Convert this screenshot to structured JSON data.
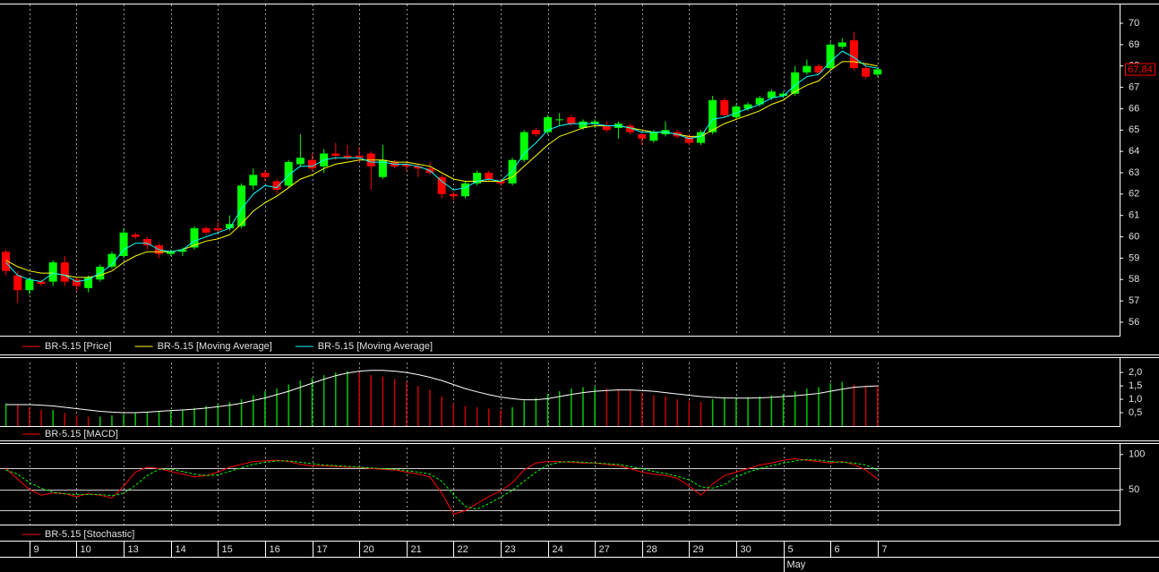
{
  "x_axis": {
    "xlim": [
      -0.5,
      94.55
    ],
    "xticks": [
      {
        "value": 2,
        "label": "9"
      },
      {
        "value": 6,
        "label": "10"
      },
      {
        "value": 10,
        "label": "13"
      },
      {
        "value": 14,
        "label": "14"
      },
      {
        "value": 18,
        "label": "15"
      },
      {
        "value": 22,
        "label": "16"
      },
      {
        "value": 26,
        "label": "17"
      },
      {
        "value": 30,
        "label": "20"
      },
      {
        "value": 34,
        "label": "21"
      },
      {
        "value": 38,
        "label": "22"
      },
      {
        "value": 42,
        "label": "23"
      },
      {
        "value": 46,
        "label": "24"
      },
      {
        "value": 50,
        "label": "27"
      },
      {
        "value": 54,
        "label": "28"
      },
      {
        "value": 58,
        "label": "29"
      },
      {
        "value": 62,
        "label": "30"
      },
      {
        "value": 66,
        "label": "5"
      },
      {
        "value": 70,
        "label": "6"
      },
      {
        "value": 74,
        "label": "7"
      }
    ],
    "months": [
      {
        "value": 66,
        "label": "May"
      }
    ]
  },
  "chart_data": [
    {
      "type": "candlestick",
      "ylim": [
        55.37,
        70.88
      ],
      "yticks": [
        56,
        57,
        58,
        59,
        60,
        61,
        62,
        63,
        64,
        65,
        66,
        67,
        68,
        69,
        70
      ],
      "last_price": {
        "value": 67.84,
        "label": "67,84"
      },
      "last_price_color": "#ff0000",
      "series": [
        {
          "name": "BR-5.15 [Price]",
          "color": "#ff0000",
          "up_color": "#00ff00",
          "down_color": "#ff0000",
          "open": [
            59.3,
            58.2,
            57.5,
            57.9,
            57.9,
            58.8,
            58.0,
            57.6,
            58.0,
            58.6,
            59.1,
            60.1,
            59.9,
            59.6,
            59.2,
            59.3,
            59.5,
            60.4,
            60.4,
            60.4,
            60.5,
            62.4,
            63.0,
            62.6,
            62.4,
            63.4,
            63.6,
            63.3,
            63.9,
            63.8,
            63.8,
            63.9,
            62.8,
            63.5,
            63.4,
            63.3,
            63.2,
            62.8,
            62.0,
            61.9,
            62.5,
            63.0,
            62.6,
            62.5,
            63.6,
            65.0,
            64.9,
            65.5,
            65.6,
            65.1,
            65.3,
            65.2,
            65.1,
            65.2,
            64.8,
            64.5,
            64.8,
            64.9,
            64.7,
            64.4,
            64.9,
            66.4,
            65.6,
            66.0,
            66.2,
            66.5,
            66.6,
            66.7,
            67.7,
            68.0,
            67.9,
            68.9,
            69.2,
            67.9,
            67.6
          ],
          "high": [
            59.4,
            58.4,
            58.1,
            58.0,
            58.9,
            59.1,
            58.1,
            58.2,
            58.7,
            59.3,
            60.4,
            60.2,
            60.0,
            59.7,
            59.4,
            59.5,
            60.5,
            60.5,
            60.7,
            61.0,
            62.5,
            63.2,
            63.1,
            62.7,
            63.6,
            64.8,
            63.9,
            64.1,
            64.4,
            64.3,
            64.2,
            64.0,
            64.3,
            63.6,
            63.5,
            63.4,
            63.5,
            62.9,
            62.1,
            62.6,
            63.1,
            63.1,
            62.7,
            63.7,
            65.0,
            65.1,
            65.7,
            65.8,
            65.7,
            65.5,
            65.5,
            65.4,
            65.4,
            65.3,
            64.9,
            65.0,
            65.4,
            65.0,
            64.8,
            65.0,
            66.6,
            66.5,
            66.2,
            66.3,
            66.6,
            66.9,
            66.8,
            68.0,
            68.3,
            68.1,
            69.1,
            69.3,
            69.6,
            68.1,
            67.9
          ],
          "low": [
            58.2,
            56.9,
            57.3,
            57.7,
            57.7,
            57.7,
            57.5,
            57.4,
            57.9,
            58.5,
            59.0,
            59.9,
            59.4,
            59.0,
            59.1,
            59.1,
            59.4,
            60.1,
            60.2,
            60.3,
            60.4,
            62.2,
            62.6,
            62.0,
            62.3,
            63.3,
            63.1,
            63.0,
            63.6,
            63.6,
            63.5,
            62.2,
            62.7,
            63.2,
            63.1,
            62.8,
            62.9,
            61.8,
            61.7,
            61.8,
            62.4,
            62.6,
            62.4,
            62.4,
            63.5,
            64.7,
            64.8,
            65.2,
            65.2,
            65.0,
            65.1,
            64.9,
            64.6,
            64.8,
            64.3,
            64.4,
            64.7,
            64.6,
            64.3,
            64.3,
            64.8,
            65.6,
            65.5,
            65.9,
            66.1,
            66.4,
            66.5,
            66.6,
            67.6,
            67.6,
            67.8,
            68.8,
            67.8,
            67.4,
            67.5
          ],
          "close": [
            58.4,
            57.5,
            58.0,
            57.8,
            58.8,
            57.9,
            57.7,
            58.1,
            58.6,
            59.2,
            60.2,
            60.0,
            59.6,
            59.2,
            59.3,
            59.4,
            60.4,
            60.2,
            60.3,
            60.6,
            62.4,
            62.9,
            62.8,
            62.2,
            63.5,
            63.7,
            63.2,
            63.9,
            63.8,
            63.7,
            63.7,
            63.3,
            63.6,
            63.3,
            63.3,
            63.2,
            63.0,
            62.0,
            61.9,
            62.5,
            63.0,
            62.7,
            62.5,
            63.6,
            64.9,
            64.8,
            65.6,
            65.5,
            65.3,
            65.4,
            65.4,
            65.0,
            65.3,
            64.9,
            64.6,
            64.9,
            65.0,
            64.7,
            64.4,
            64.9,
            66.4,
            65.7,
            66.1,
            66.2,
            66.5,
            66.8,
            66.7,
            67.7,
            68.0,
            67.7,
            69.0,
            69.1,
            67.9,
            67.5,
            67.84
          ]
        },
        {
          "name": "BR-5.15 [Moving Average]",
          "color": "#ffff00",
          "values": [
            58.9,
            58.6,
            58.4,
            58.3,
            58.3,
            58.2,
            58.1,
            58.1,
            58.2,
            58.4,
            58.8,
            59.1,
            59.3,
            59.3,
            59.3,
            59.4,
            59.6,
            59.8,
            59.9,
            60.1,
            60.6,
            61.2,
            61.6,
            61.9,
            62.3,
            62.7,
            62.9,
            63.2,
            63.4,
            63.5,
            63.6,
            63.6,
            63.6,
            63.5,
            63.5,
            63.4,
            63.3,
            63.0,
            62.7,
            62.6,
            62.6,
            62.6,
            62.6,
            62.8,
            63.3,
            63.8,
            64.3,
            64.7,
            64.9,
            65.1,
            65.2,
            65.2,
            65.2,
            65.1,
            65.0,
            64.9,
            64.9,
            64.8,
            64.7,
            64.7,
            65.0,
            65.3,
            65.5,
            65.7,
            65.9,
            66.2,
            66.4,
            66.8,
            67.1,
            67.3,
            67.8,
            68.2,
            68.2,
            68.1,
            68.0
          ]
        },
        {
          "name": "BR-5.15 [Moving Average]",
          "color": "#00ffff",
          "values": [
            58.8,
            58.2,
            58.0,
            57.9,
            58.3,
            58.2,
            57.9,
            58.0,
            58.3,
            58.7,
            59.4,
            59.7,
            59.7,
            59.4,
            59.3,
            59.4,
            59.8,
            60.0,
            60.2,
            60.4,
            61.3,
            62.0,
            62.4,
            62.3,
            62.9,
            63.3,
            63.3,
            63.6,
            63.7,
            63.7,
            63.7,
            63.5,
            63.5,
            63.4,
            63.4,
            63.3,
            63.1,
            62.6,
            62.2,
            62.3,
            62.6,
            62.7,
            62.6,
            63.1,
            63.9,
            64.4,
            65.0,
            65.2,
            65.3,
            65.3,
            65.3,
            65.2,
            65.2,
            65.1,
            64.9,
            64.9,
            64.9,
            64.8,
            64.6,
            64.7,
            65.5,
            65.6,
            65.8,
            66.0,
            66.2,
            66.5,
            66.6,
            67.1,
            67.5,
            67.6,
            68.2,
            68.7,
            68.4,
            68.0,
            67.9
          ]
        }
      ]
    },
    {
      "type": "macd",
      "ylim": [
        0,
        2.37
      ],
      "yticks": [
        {
          "value": 0.5,
          "label": "0,5"
        },
        {
          "value": 1.0,
          "label": "1,0"
        },
        {
          "value": 1.5,
          "label": "1,5"
        },
        {
          "value": 2.0,
          "label": "2,0"
        }
      ],
      "series": [
        {
          "name": "BR-5.15 [MACD]",
          "color": "#ff0000",
          "style": "histogram",
          "up_color": "#00c800",
          "down_color": "#c80000",
          "values": [
            0.85,
            0.8,
            0.7,
            0.6,
            0.6,
            0.5,
            0.4,
            0.35,
            0.35,
            0.4,
            0.45,
            0.5,
            0.52,
            0.55,
            0.58,
            0.62,
            0.68,
            0.75,
            0.82,
            0.9,
            1.0,
            1.15,
            1.3,
            1.4,
            1.55,
            1.7,
            1.8,
            1.9,
            2.0,
            2.05,
            2.0,
            1.9,
            1.85,
            1.75,
            1.65,
            1.5,
            1.35,
            1.1,
            0.85,
            0.75,
            0.7,
            0.65,
            0.6,
            0.7,
            0.95,
            1.05,
            1.2,
            1.3,
            1.4,
            1.45,
            1.46,
            1.4,
            1.38,
            1.35,
            1.25,
            1.15,
            1.1,
            1.0,
            0.95,
            0.9,
            1.0,
            1.05,
            1.06,
            1.08,
            1.1,
            1.15,
            1.2,
            1.3,
            1.4,
            1.45,
            1.6,
            1.65,
            1.55,
            1.5,
            1.48
          ]
        },
        {
          "color": "#ffffff",
          "values": [
            0.8,
            0.8,
            0.8,
            0.78,
            0.75,
            0.7,
            0.65,
            0.6,
            0.55,
            0.52,
            0.5,
            0.5,
            0.52,
            0.55,
            0.58,
            0.6,
            0.63,
            0.67,
            0.72,
            0.78,
            0.85,
            0.95,
            1.05,
            1.17,
            1.3,
            1.45,
            1.6,
            1.75,
            1.88,
            1.98,
            2.05,
            2.08,
            2.08,
            2.05,
            2.0,
            1.92,
            1.82,
            1.7,
            1.55,
            1.4,
            1.28,
            1.17,
            1.08,
            1.02,
            0.98,
            0.98,
            1.02,
            1.1,
            1.18,
            1.25,
            1.3,
            1.33,
            1.35,
            1.35,
            1.33,
            1.3,
            1.25,
            1.2,
            1.15,
            1.1,
            1.07,
            1.05,
            1.04,
            1.04,
            1.05,
            1.07,
            1.1,
            1.13,
            1.17,
            1.22,
            1.3,
            1.38,
            1.45,
            1.48,
            1.5
          ]
        }
      ]
    },
    {
      "type": "line",
      "ylim": [
        0,
        110
      ],
      "yticks": [
        50,
        100
      ],
      "levels": [
        20,
        50,
        80
      ],
      "series": [
        {
          "name": "BR-5.15 [Stochastic]",
          "color": "#ff0000",
          "values": [
            80,
            65,
            50,
            42,
            45,
            44,
            40,
            44,
            42,
            38,
            55,
            75,
            82,
            80,
            76,
            72,
            68,
            70,
            75,
            82,
            86,
            90,
            91,
            92,
            90,
            86,
            84,
            84,
            83,
            82,
            82,
            80,
            79,
            78,
            75,
            72,
            68,
            45,
            15,
            20,
            30,
            40,
            48,
            60,
            78,
            88,
            90,
            90,
            89,
            88,
            88,
            86,
            84,
            80,
            75,
            72,
            70,
            66,
            55,
            42,
            58,
            70,
            75,
            80,
            85,
            88,
            92,
            94,
            92,
            90,
            88,
            90,
            86,
            78,
            65
          ]
        },
        {
          "color": "#00ff00",
          "dash": true,
          "values": [
            78,
            72,
            60,
            52,
            46,
            44,
            43,
            43,
            43,
            41,
            45,
            56,
            70,
            79,
            79,
            76,
            72,
            70,
            71,
            76,
            81,
            86,
            89,
            91,
            91,
            89,
            87,
            85,
            84,
            83,
            82,
            81,
            80,
            79,
            77,
            75,
            72,
            62,
            43,
            26,
            22,
            30,
            39,
            49,
            62,
            75,
            85,
            89,
            90,
            89,
            88,
            87,
            86,
            83,
            80,
            76,
            73,
            69,
            64,
            54,
            52,
            57,
            68,
            75,
            80,
            84,
            88,
            91,
            93,
            92,
            90,
            89,
            88,
            85,
            78
          ]
        }
      ]
    }
  ]
}
